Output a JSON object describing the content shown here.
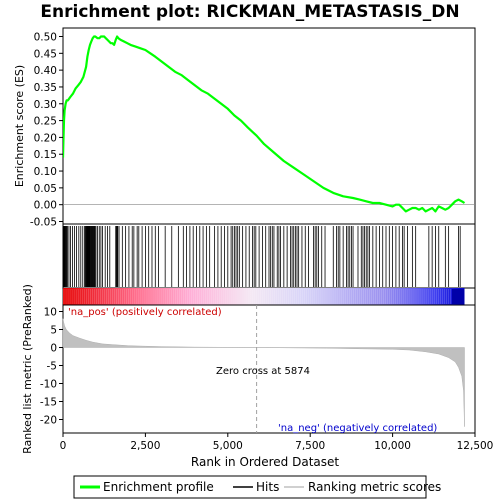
{
  "chart_data": {
    "type": "line",
    "title": "Enrichment plot: RICKMAN_METASTASIS_DN",
    "top_panel": {
      "ylabel": "Enrichment score (ES)",
      "yticks": [
        "0.50",
        "0.45",
        "0.40",
        "0.35",
        "0.30",
        "0.25",
        "0.20",
        "0.15",
        "0.10",
        "0.05",
        "0.00",
        "-0.05"
      ],
      "ylim": [
        -0.05,
        0.52
      ],
      "series": [
        {
          "name": "Enrichment profile",
          "color": "#00ff00",
          "x": [
            0,
            15,
            30,
            50,
            80,
            110,
            150,
            220,
            300,
            380,
            460,
            540,
            620,
            700,
            740,
            780,
            820,
            860,
            900,
            940,
            980,
            1050,
            1100,
            1150,
            1200,
            1250,
            1300,
            1350,
            1400,
            1450,
            1500,
            1550,
            1600,
            1640,
            1680,
            1750,
            1850,
            1950,
            2050,
            2200,
            2350,
            2500,
            2650,
            2800,
            3000,
            3200,
            3400,
            3600,
            3800,
            4000,
            4200,
            4400,
            4600,
            4800,
            5000,
            5200,
            5400,
            5600,
            5874,
            6100,
            6400,
            6700,
            7000,
            7300,
            7600,
            7900,
            8200,
            8500,
            8800,
            9000,
            9200,
            9400,
            9600,
            9800,
            10000,
            10100,
            10200,
            10300,
            10400,
            10500,
            10600,
            10700,
            10800,
            10900,
            11000,
            11100,
            11200,
            11300,
            11400,
            11500,
            11600,
            11700,
            11800,
            11900,
            12000,
            12100,
            12180
          ],
          "y": [
            0.14,
            0.2,
            0.25,
            0.28,
            0.3,
            0.31,
            0.31,
            0.32,
            0.33,
            0.345,
            0.355,
            0.365,
            0.38,
            0.41,
            0.44,
            0.46,
            0.475,
            0.485,
            0.495,
            0.5,
            0.5,
            0.495,
            0.495,
            0.5,
            0.5,
            0.5,
            0.495,
            0.49,
            0.485,
            0.48,
            0.48,
            0.475,
            0.49,
            0.5,
            0.495,
            0.49,
            0.485,
            0.48,
            0.475,
            0.47,
            0.465,
            0.46,
            0.45,
            0.44,
            0.425,
            0.41,
            0.395,
            0.385,
            0.37,
            0.355,
            0.34,
            0.33,
            0.315,
            0.3,
            0.285,
            0.265,
            0.25,
            0.23,
            0.205,
            0.18,
            0.155,
            0.13,
            0.11,
            0.09,
            0.07,
            0.05,
            0.035,
            0.025,
            0.02,
            0.015,
            0.01,
            0.005,
            0.005,
            0.0,
            -0.005,
            0.0,
            0.0,
            -0.01,
            -0.02,
            -0.015,
            -0.01,
            -0.01,
            -0.015,
            -0.01,
            -0.02,
            -0.015,
            -0.01,
            -0.02,
            -0.005,
            -0.01,
            -0.015,
            -0.01,
            0.0,
            0.01,
            0.015,
            0.01,
            0.005
          ]
        }
      ]
    },
    "hits_panel": {
      "label": "Hits",
      "hit_ranks": [
        10,
        25,
        40,
        55,
        70,
        90,
        110,
        140,
        180,
        230,
        290,
        350,
        410,
        480,
        540,
        600,
        650,
        680,
        700,
        720,
        740,
        755,
        770,
        785,
        800,
        815,
        830,
        850,
        870,
        890,
        910,
        930,
        950,
        970,
        1000,
        1050,
        1100,
        1150,
        1200,
        1280,
        1350,
        1420,
        1600,
        1620,
        1640,
        1660,
        1700,
        1800,
        1900,
        2000,
        2100,
        2150,
        2250,
        2300,
        2400,
        2500,
        2600,
        2700,
        2800,
        2900,
        3100,
        3300,
        3500,
        3650,
        3750,
        3850,
        3950,
        4050,
        4150,
        4250,
        4350,
        4450,
        4600,
        4700,
        4800,
        4900,
        5000,
        5100,
        5150,
        5200,
        5250,
        5300,
        5350,
        5450,
        5550,
        5650,
        5750,
        5800,
        5850,
        5950,
        6050,
        6150,
        6250,
        6300,
        6350,
        6400,
        6500,
        6550,
        6600,
        6700,
        6800,
        6900,
        6950,
        7000,
        7050,
        7100,
        7150,
        7250,
        7350,
        7450,
        7600,
        7650,
        7700,
        7750,
        7850,
        7950,
        8200,
        8300,
        8350,
        8400,
        8500,
        8600,
        8650,
        8700,
        8750,
        8800,
        8950,
        9050,
        9100,
        9150,
        9200,
        9250,
        9300,
        9400,
        9500,
        9600,
        9700,
        9800,
        9900,
        10000,
        10100,
        10200,
        10300,
        10350,
        10450,
        10600,
        10700,
        11100,
        11200,
        11300,
        11400,
        11600,
        11700,
        12000,
        12050
      ],
      "colorbar_left_label": "'na_pos' (positively correlated)",
      "colorbar_right_label": "'na_neg' (negatively correlated)"
    },
    "metric_panel": {
      "ylabel": "Ranked list metric (PreRanked)",
      "yticks": [
        "10",
        "5",
        "0",
        "-5",
        "-10",
        "-15",
        "-20"
      ],
      "ylim": [
        -23,
        12
      ],
      "zero_cross_label": "Zero cross at 5874",
      "zero_cross": 5874,
      "series": [
        {
          "name": "Ranking metric scores",
          "color": "#c0c0c0",
          "x": [
            0,
            20,
            50,
            100,
            200,
            300,
            500,
            700,
            900,
            1200,
            1500,
            2000,
            2500,
            3000,
            4000,
            5000,
            5874,
            7000,
            8000,
            9000,
            10000,
            10500,
            11000,
            11400,
            11700,
            11900,
            12000,
            12100,
            12150,
            12180
          ],
          "y": [
            8.0,
            7.0,
            6.0,
            5.0,
            4.0,
            3.3,
            2.6,
            2.0,
            1.5,
            1.0,
            0.8,
            0.5,
            0.35,
            0.25,
            0.1,
            0.05,
            0.0,
            -0.1,
            -0.2,
            -0.35,
            -0.5,
            -0.7,
            -1.2,
            -1.8,
            -2.8,
            -4.0,
            -5.5,
            -8.0,
            -12.0,
            -22.0
          ]
        }
      ]
    },
    "xlabel": "Rank in Ordered Dataset",
    "xticks": [
      "0",
      "2,500",
      "5,000",
      "7,500",
      "10,000",
      "12,500"
    ],
    "xlim": [
      0,
      12500
    ],
    "n_genes": 12180,
    "legend": {
      "placement": "bottom",
      "items": [
        "Enrichment profile",
        "Hits",
        "Ranking metric scores"
      ]
    },
    "colors": {
      "enrichment": "#00ff00",
      "hits": "#000000",
      "metric_fill": "#c0c0c0",
      "pos_label": "#cc0000",
      "neg_label": "#0000cc"
    }
  }
}
